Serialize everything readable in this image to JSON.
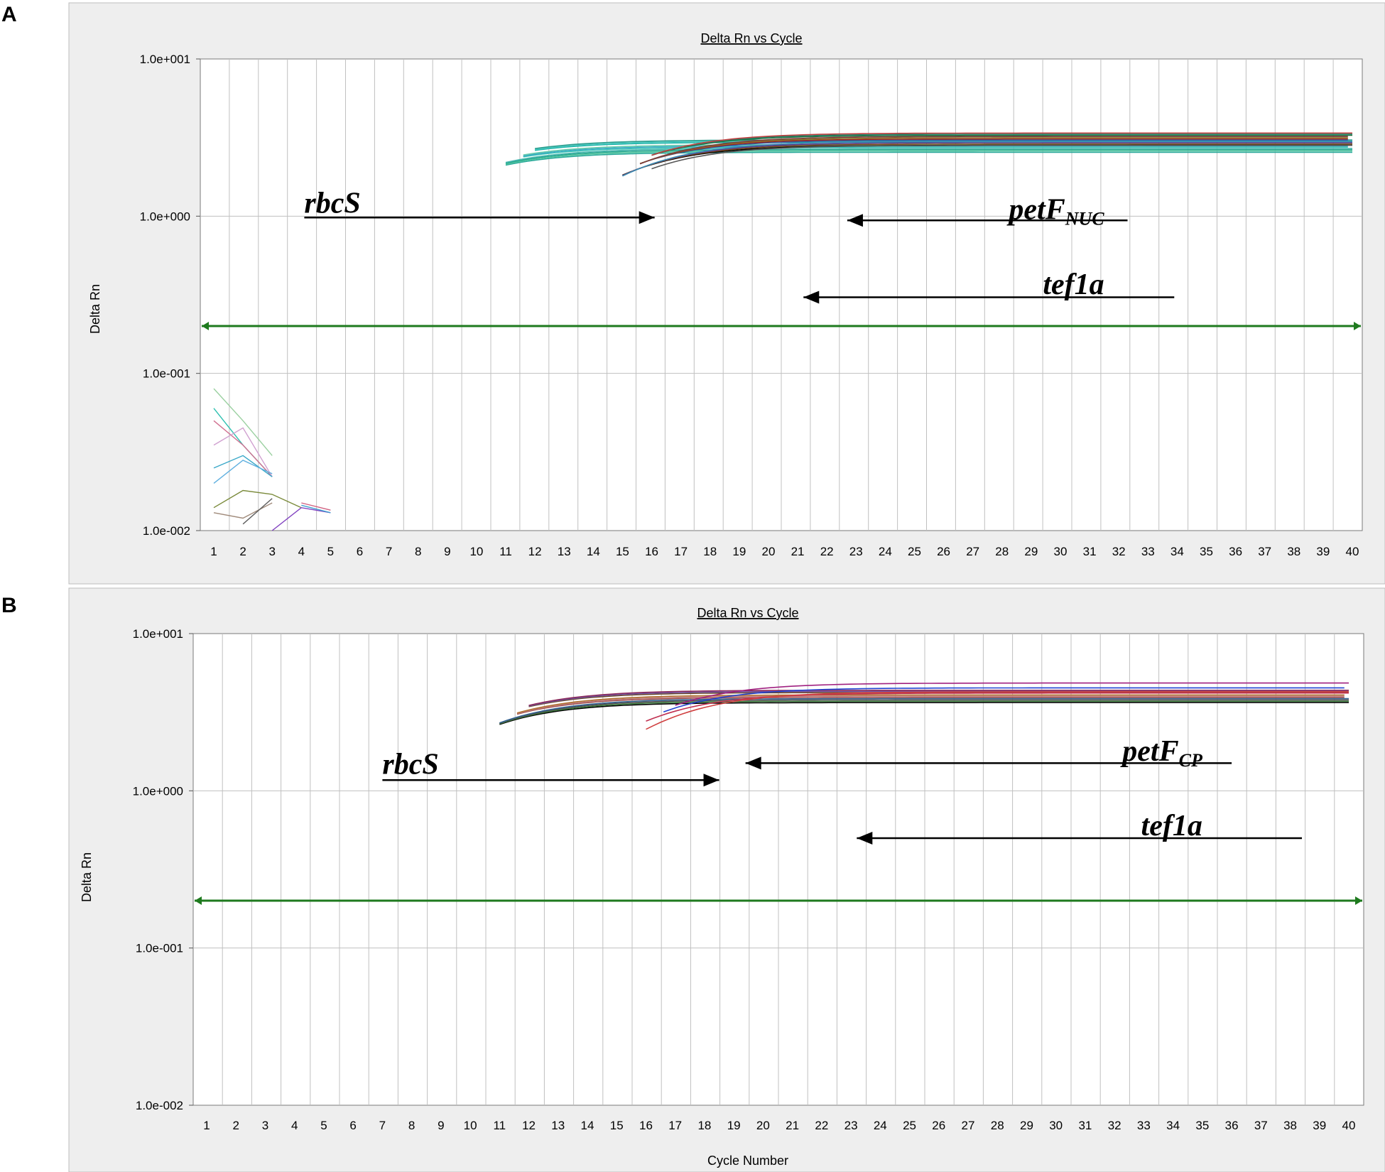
{
  "colors": {
    "panel_bg": "#eeeeee",
    "plot_bg": "#ffffff",
    "grid": "#c0c0c0",
    "threshold": "#1e7a1e",
    "arrow": "#000000"
  },
  "chart_data": [
    {
      "panel_label": "A",
      "type": "line",
      "title": "Delta Rn vs Cycle",
      "xlabel": "",
      "ylabel": "Delta Rn",
      "y_scale": "log",
      "ylim": [
        0.01,
        10
      ],
      "y_ticks": [
        "1.0e-002",
        "1.0e-001",
        "1.0e+000",
        "1.0e+001"
      ],
      "xlim": [
        1,
        40
      ],
      "x_ticks": [
        "1",
        "2",
        "3",
        "4",
        "5",
        "6",
        "7",
        "8",
        "9",
        "10",
        "11",
        "12",
        "13",
        "14",
        "15",
        "16",
        "17",
        "18",
        "19",
        "20",
        "21",
        "22",
        "23",
        "24",
        "25",
        "26",
        "27",
        "28",
        "29",
        "30",
        "31",
        "32",
        "33",
        "34",
        "35",
        "36",
        "37",
        "38",
        "39",
        "40"
      ],
      "grid": true,
      "threshold": 0.2,
      "annotations": [
        {
          "text": "rbcS",
          "sub": "",
          "text_at": [
            4.1,
            1.05
          ],
          "line_from": [
            4.1,
            0.98
          ],
          "arrow_to": [
            16.1,
            0.98
          ]
        },
        {
          "text": "petF",
          "sub": "NUC",
          "text_at": [
            31.5,
            0.96
          ],
          "line_from": [
            32.3,
            0.94
          ],
          "arrow_to": [
            22.7,
            0.94
          ]
        },
        {
          "text": "tef1a",
          "sub": "",
          "text_at": [
            31.5,
            0.32
          ],
          "line_from": [
            33.9,
            0.305
          ],
          "arrow_to": [
            21.2,
            0.305
          ]
        }
      ],
      "series_groups": [
        {
          "name": "",
          "ct": 13,
          "plateau": 2.8,
          "start": 11,
          "end": 40,
          "replicates": 10,
          "spread": 0.1,
          "colors": [
            "#2aa89a",
            "#36c1b4",
            "#1fb5a8",
            "#52c7a0",
            "#3aa8c8",
            "#4bc8c0",
            "#25a58d",
            "#66ccaa",
            "#2e9e8e",
            "#48b8b0"
          ]
        },
        {
          "name": "",
          "ct": 19.2,
          "plateau": 3.1,
          "start": 15,
          "end": 40,
          "replicates": 12,
          "spread": 0.22,
          "colors": [
            "#000000",
            "#2a5fa0",
            "#1f6f3a",
            "#7a4a1a",
            "#a02020",
            "#20806a",
            "#5a3a8a",
            "#8a7a2a",
            "#c04040",
            "#3a8ab0",
            "#7a3a3a",
            "#555555"
          ]
        }
      ],
      "noise": [
        {
          "x": [
            1,
            2,
            3
          ],
          "y": [
            0.08,
            0.05,
            0.03
          ],
          "color": "#9ad0a0"
        },
        {
          "x": [
            1,
            2,
            3
          ],
          "y": [
            0.06,
            0.035,
            0.022
          ],
          "color": "#2ec0b0"
        },
        {
          "x": [
            1,
            2,
            3
          ],
          "y": [
            0.05,
            0.035,
            0.022
          ],
          "color": "#d07090"
        },
        {
          "x": [
            1,
            2,
            3
          ],
          "y": [
            0.035,
            0.045,
            0.022
          ],
          "color": "#d0a0d0"
        },
        {
          "x": [
            1,
            2,
            3
          ],
          "y": [
            0.025,
            0.03,
            0.022
          ],
          "color": "#3aa8c8"
        },
        {
          "x": [
            1,
            2,
            3
          ],
          "y": [
            0.02,
            0.028,
            0.023
          ],
          "color": "#60b0e0"
        },
        {
          "x": [
            1,
            2,
            3,
            4
          ],
          "y": [
            0.014,
            0.018,
            0.017,
            0.014
          ],
          "color": "#7a8a3a"
        },
        {
          "x": [
            1,
            2,
            3
          ],
          "y": [
            0.013,
            0.012,
            0.015
          ],
          "color": "#a08a7a"
        },
        {
          "x": [
            2,
            3
          ],
          "y": [
            0.011,
            0.016
          ],
          "color": "#606060"
        },
        {
          "x": [
            3,
            4,
            5
          ],
          "y": [
            0.01,
            0.014,
            0.013
          ],
          "color": "#8040c0"
        },
        {
          "x": [
            4,
            5
          ],
          "y": [
            0.015,
            0.0135
          ],
          "color": "#d06080"
        },
        {
          "x": [
            4,
            5
          ],
          "y": [
            0.0145,
            0.013
          ],
          "color": "#40a0d0"
        }
      ]
    },
    {
      "panel_label": "B",
      "type": "line",
      "title": "Delta Rn vs Cycle",
      "xlabel": "Cycle Number",
      "ylabel": "Delta Rn",
      "y_scale": "log",
      "ylim": [
        0.01,
        10
      ],
      "y_ticks": [
        "1.0e-002",
        "1.0e-001",
        "1.0e+000",
        "1.0e+001"
      ],
      "xlim": [
        1,
        40
      ],
      "x_ticks": [
        "1",
        "2",
        "3",
        "4",
        "5",
        "6",
        "7",
        "8",
        "9",
        "10",
        "11",
        "12",
        "13",
        "14",
        "15",
        "16",
        "17",
        "18",
        "19",
        "20",
        "21",
        "22",
        "23",
        "24",
        "25",
        "26",
        "27",
        "28",
        "29",
        "30",
        "31",
        "32",
        "33",
        "34",
        "35",
        "36",
        "37",
        "38",
        "39",
        "40"
      ],
      "grid": true,
      "threshold": 0.2,
      "annotations": [
        {
          "text": "rbcS",
          "sub": "",
          "text_at": [
            7.0,
            1.28
          ],
          "line_from": [
            7.0,
            1.17
          ],
          "arrow_to": [
            18.5,
            1.17
          ]
        },
        {
          "text": "petF",
          "sub": "CP",
          "text_at": [
            35.0,
            1.55
          ],
          "line_from": [
            36.0,
            1.5
          ],
          "arrow_to": [
            19.4,
            1.5
          ]
        },
        {
          "text": "tef1a",
          "sub": "",
          "text_at": [
            35.0,
            0.52
          ],
          "line_from": [
            38.4,
            0.5
          ],
          "arrow_to": [
            23.2,
            0.5
          ]
        }
      ],
      "series_groups": [
        {
          "name": "",
          "ct": 14.9,
          "plateau": 4.0,
          "start": 11,
          "end": 40,
          "replicates": 10,
          "spread": 0.12,
          "colors": [
            "#000000",
            "#a05050",
            "#6a4a2a",
            "#3a7a3a",
            "#c08080",
            "#7050a0",
            "#505050",
            "#b07030",
            "#8a2a5a",
            "#306090"
          ]
        },
        {
          "name": "",
          "ct": 21.0,
          "plateau": 4.6,
          "start": 16,
          "end": 40,
          "replicates": 4,
          "spread": 0.35,
          "colors": [
            "#c03050",
            "#2040d0",
            "#a02080",
            "#d04040"
          ]
        }
      ],
      "noise": []
    }
  ]
}
